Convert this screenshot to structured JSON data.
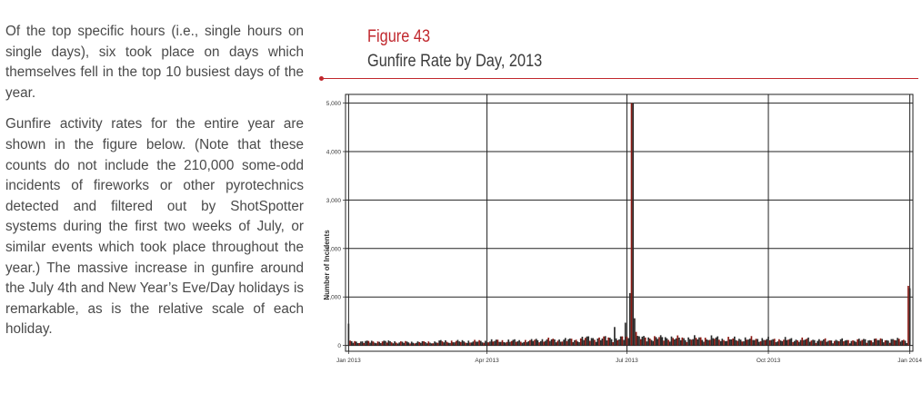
{
  "body_text": {
    "paragraph_1": "Of the top specific hours (i.e., single hours on single days), six took place on days which themselves fell in the top 10 busiest days of the year.",
    "paragraph_2": "Gunfire activity rates for the entire year are shown in the figure below. (Note that these counts do not include the 210,000 some-odd incidents of fireworks or other pyrotechnics detected and filtered out by ShotSpotter systems during the first two weeks of July, or similar events which took place throughout the year.) The massive increase in gunfire around the July 4th and New Year’s Eve/Day holidays is remarkable, as is the relative scale of each holiday."
  },
  "figure": {
    "number": "Figure 43",
    "title": "Gunfire Rate by Day, 2013"
  },
  "colors": {
    "accent": "#c0272d",
    "bar_dark": "#2b2b2b",
    "bar_red": "#8b1a14"
  },
  "chart_data": {
    "type": "bar",
    "title": "Gunfire Rate by Day, 2013",
    "xlabel": "",
    "ylabel": "Number of Incidents",
    "x_ticks": [
      "Jan 2013",
      "Apr 2013",
      "Jul 2013",
      "Oct 2013",
      "Jan 2014"
    ],
    "y_ticks": [
      "0",
      "1,000",
      "2,000",
      "3,000",
      "4,000",
      "5,000"
    ],
    "ylim": [
      -120,
      5180
    ],
    "x_range": [
      "2012-12-30",
      "2014-01-03"
    ],
    "grid": true,
    "legend": "none",
    "baseline_by_month": [
      {
        "month": "2013-01",
        "value": 75
      },
      {
        "month": "2013-02",
        "value": 65
      },
      {
        "month": "2013-03",
        "value": 80
      },
      {
        "month": "2013-04",
        "value": 90
      },
      {
        "month": "2013-05",
        "value": 110
      },
      {
        "month": "2013-06",
        "value": 140
      },
      {
        "month": "2013-07",
        "value": 150
      },
      {
        "month": "2013-08",
        "value": 140
      },
      {
        "month": "2013-09",
        "value": 125
      },
      {
        "month": "2013-10",
        "value": 115
      },
      {
        "month": "2013-11",
        "value": 100
      },
      {
        "month": "2013-12",
        "value": 110
      }
    ],
    "notable_days": [
      {
        "date": "2013-01-01",
        "value": 450
      },
      {
        "date": "2013-06-23",
        "value": 380
      },
      {
        "date": "2013-06-30",
        "value": 470
      },
      {
        "date": "2013-07-03",
        "value": 1080
      },
      {
        "date": "2013-07-04",
        "value": 5000
      },
      {
        "date": "2013-07-05",
        "value": 5000
      },
      {
        "date": "2013-07-06",
        "value": 560
      },
      {
        "date": "2013-07-07",
        "value": 280
      },
      {
        "date": "2013-12-31",
        "value": 1230
      },
      {
        "date": "2014-01-01",
        "value": 1180
      }
    ]
  }
}
